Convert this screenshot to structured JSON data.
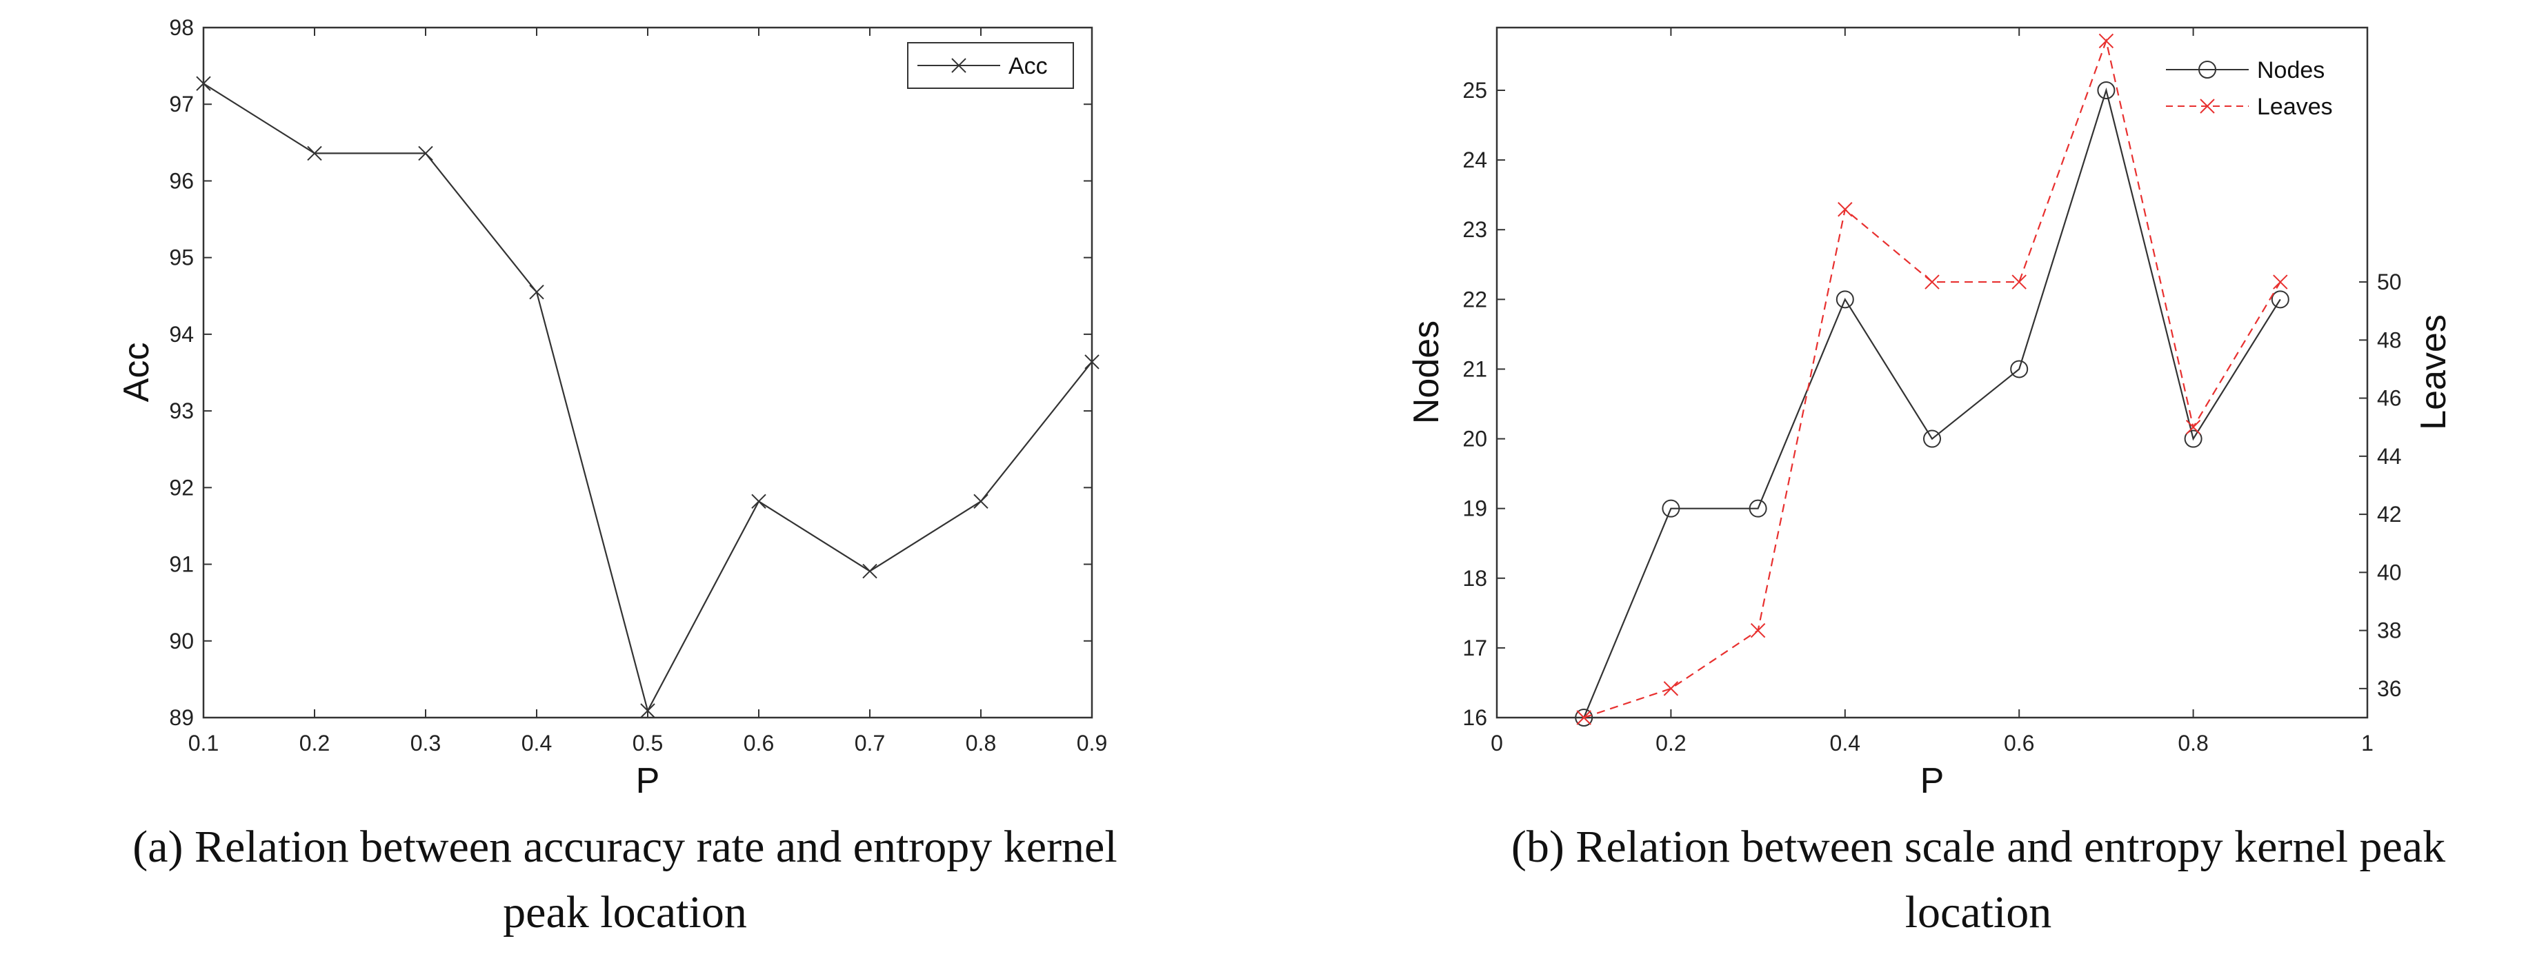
{
  "chart_data": [
    {
      "type": "line",
      "xlabel": "P",
      "ylabel": "Acc",
      "xlim": [
        0.1,
        0.9
      ],
      "ylim": [
        89,
        98
      ],
      "xticks": [
        "0.1",
        "0.2",
        "0.3",
        "0.4",
        "0.5",
        "0.6",
        "0.7",
        "0.8",
        "0.9"
      ],
      "yticks": [
        "89",
        "90",
        "91",
        "92",
        "93",
        "94",
        "95",
        "96",
        "97",
        "98"
      ],
      "legend_position": "top-right",
      "series": [
        {
          "name": "Acc",
          "marker": "x",
          "color": "#333333",
          "x": [
            0.1,
            0.2,
            0.3,
            0.4,
            0.5,
            0.6,
            0.7,
            0.8,
            0.9
          ],
          "y": [
            97.27,
            96.36,
            96.36,
            94.55,
            89.09,
            91.82,
            90.91,
            91.82,
            93.64
          ]
        }
      ],
      "caption": [
        "(a) Relation between accuracy rate and entropy kernel",
        "peak location"
      ]
    },
    {
      "type": "line",
      "xlabel": "P",
      "ylabel": "Nodes",
      "ylabel_right": "Leaves",
      "xlim": [
        0,
        1
      ],
      "ylim": [
        16,
        25.9
      ],
      "ylim_right": [
        35,
        58.76
      ],
      "xticks": [
        "0",
        "0.2",
        "0.4",
        "0.6",
        "0.8",
        "1"
      ],
      "yticks": [
        "16",
        "17",
        "18",
        "19",
        "20",
        "21",
        "22",
        "23",
        "24",
        "25"
      ],
      "yticks_right": [
        "36",
        "38",
        "40",
        "42",
        "44",
        "46",
        "48",
        "50"
      ],
      "legend_position": "top-right",
      "series": [
        {
          "name": "Nodes",
          "marker": "o",
          "color": "#333333",
          "axis": "left",
          "x": [
            0.1,
            0.2,
            0.3,
            0.4,
            0.5,
            0.6,
            0.7,
            0.8,
            0.9
          ],
          "y": [
            16,
            19,
            19,
            22,
            20,
            21,
            25,
            20,
            22
          ]
        },
        {
          "name": "Leaves",
          "marker": "x",
          "color": "#e8302f",
          "axis": "right",
          "dashed": true,
          "x": [
            0.1,
            0.2,
            0.3,
            0.4,
            0.5,
            0.6,
            0.7,
            0.8,
            0.9
          ],
          "y": [
            35,
            36,
            38,
            52.5,
            50,
            50,
            58.3,
            45,
            50
          ]
        }
      ],
      "caption": [
        "(b) Relation between scale and entropy kernel peak",
        "location"
      ]
    }
  ]
}
